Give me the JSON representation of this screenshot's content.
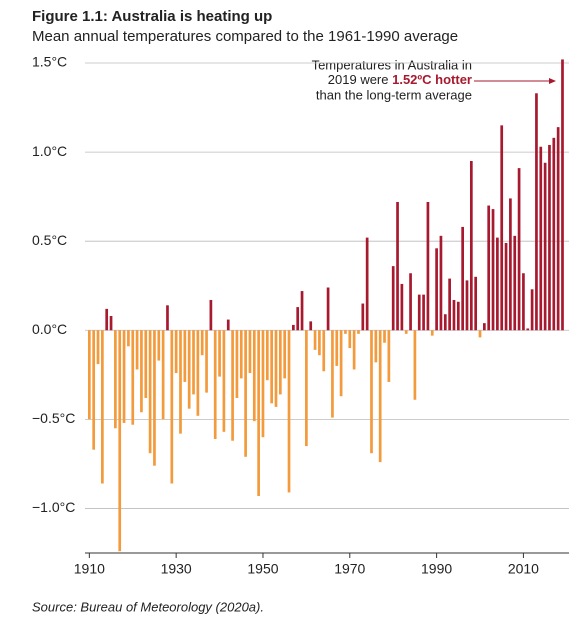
{
  "chart_data": {
    "type": "bar",
    "title": "Figure 1.1: Australia is heating up",
    "subtitle": "Mean annual temperatures compared to the 1961-1990 average",
    "annotation": {
      "line1": "Temperatures in Australia in",
      "line2a": "2019 were ",
      "line2b": "1.52ºC hotter",
      "line3": "than the long-term average"
    },
    "source": "Source: Bureau of Meteorology (2020a).",
    "x": [
      1910,
      1911,
      1912,
      1913,
      1914,
      1915,
      1916,
      1917,
      1918,
      1919,
      1920,
      1921,
      1922,
      1923,
      1924,
      1925,
      1926,
      1927,
      1928,
      1929,
      1930,
      1931,
      1932,
      1933,
      1934,
      1935,
      1936,
      1937,
      1938,
      1939,
      1940,
      1941,
      1942,
      1943,
      1944,
      1945,
      1946,
      1947,
      1948,
      1949,
      1950,
      1951,
      1952,
      1953,
      1954,
      1955,
      1956,
      1957,
      1958,
      1959,
      1960,
      1961,
      1962,
      1963,
      1964,
      1965,
      1966,
      1967,
      1968,
      1969,
      1970,
      1971,
      1972,
      1973,
      1974,
      1975,
      1976,
      1977,
      1978,
      1979,
      1980,
      1981,
      1982,
      1983,
      1984,
      1985,
      1986,
      1987,
      1988,
      1989,
      1990,
      1991,
      1992,
      1993,
      1994,
      1995,
      1996,
      1997,
      1998,
      1999,
      2000,
      2001,
      2002,
      2003,
      2004,
      2005,
      2006,
      2007,
      2008,
      2009,
      2010,
      2011,
      2012,
      2013,
      2014,
      2015,
      2016,
      2017,
      2018,
      2019
    ],
    "values": [
      -0.5,
      -0.67,
      -0.19,
      -0.86,
      0.12,
      0.08,
      -0.55,
      -1.24,
      -0.52,
      -0.09,
      -0.53,
      -0.22,
      -0.46,
      -0.38,
      -0.69,
      -0.76,
      -0.17,
      -0.5,
      0.14,
      -0.86,
      -0.24,
      -0.58,
      -0.29,
      -0.44,
      -0.36,
      -0.48,
      -0.14,
      -0.35,
      0.17,
      -0.61,
      -0.26,
      -0.57,
      0.06,
      -0.62,
      -0.38,
      -0.27,
      -0.71,
      -0.24,
      -0.51,
      -0.93,
      -0.6,
      -0.28,
      -0.41,
      -0.43,
      -0.36,
      -0.27,
      -0.91,
      0.03,
      0.13,
      0.22,
      -0.65,
      0.05,
      -0.11,
      -0.14,
      -0.23,
      0.24,
      -0.49,
      -0.2,
      -0.37,
      -0.02,
      -0.1,
      -0.22,
      -0.02,
      0.15,
      0.52,
      -0.69,
      -0.18,
      -0.74,
      -0.07,
      -0.29,
      0.36,
      0.72,
      0.26,
      -0.02,
      0.32,
      -0.39,
      0.2,
      0.2,
      0.72,
      -0.03,
      0.46,
      0.53,
      0.09,
      0.29,
      0.17,
      0.16,
      0.58,
      0.28,
      0.95,
      0.3,
      -0.04,
      0.04,
      0.7,
      0.68,
      0.52,
      1.15,
      0.49,
      0.74,
      0.53,
      0.91,
      0.32,
      0.01,
      0.23,
      1.33,
      1.03,
      0.94,
      1.04,
      1.08,
      1.14,
      1.52
    ],
    "positive_color": "#a6192e",
    "negative_color": "#f39a3c",
    "xlim": [
      1909,
      2020.5
    ],
    "xticks": [
      1910,
      1930,
      1950,
      1970,
      1990,
      2010
    ],
    "ylim": [
      -1.25,
      1.5
    ],
    "yticks": [
      {
        "value": -1.0,
        "label": "−1.0°C"
      },
      {
        "value": -0.5,
        "label": "−0.5°C"
      },
      {
        "value": 0,
        "label": "0.0°C"
      },
      {
        "value": 0.5,
        "label": "0.5°C"
      },
      {
        "value": 1.0,
        "label": "1.0°C"
      },
      {
        "value": 1.5,
        "label": "1.5°C"
      }
    ],
    "grid": true
  }
}
